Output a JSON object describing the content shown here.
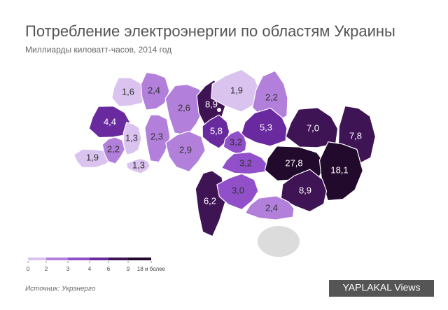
{
  "title": "Потребление электроэнергии по областям Украины",
  "subtitle": "Миллиарды киловатт-часов, 2014 год",
  "source": "Источник:  Укрэнерго",
  "watermark": "YAPLAKAL Views",
  "legend": {
    "ticks": [
      0,
      2,
      3,
      4,
      6,
      9,
      {
        "value": 18,
        "label": "18 и более"
      }
    ],
    "colors": [
      "#dac3ee",
      "#b27fdb",
      "#9150c9",
      "#6a2a9f",
      "#3f1455",
      "#220a2c"
    ]
  },
  "regions": [
    {
      "value": 1.6,
      "value_label": "1,6"
    },
    {
      "value": 2.4,
      "value_label": "2,4"
    },
    {
      "value": 2.6,
      "value_label": "2,6"
    },
    {
      "value": 8.9,
      "value_label": "8,9"
    },
    {
      "value": 1.9,
      "value_label": "1,9"
    },
    {
      "value": 2.2,
      "value_label": "2,2"
    },
    {
      "value": 4.4,
      "value_label": "4,4"
    },
    {
      "value": 1.3,
      "value_label": "1,3"
    },
    {
      "value": 2.3,
      "value_label": "2,3"
    },
    {
      "value": 2.9,
      "value_label": "2,9"
    },
    {
      "value": 5.8,
      "value_label": "5,8"
    },
    {
      "value": 5.3,
      "value_label": "5,3"
    },
    {
      "value": 7.0,
      "value_label": "7,0"
    },
    {
      "value": 7.8,
      "value_label": "7,8"
    },
    {
      "value": 1.9,
      "value_label": "1,9"
    },
    {
      "value": 2.2,
      "value_label": "2,2"
    },
    {
      "value": 1.3,
      "value_label": "1,3"
    },
    {
      "value": 3.2,
      "value_label": "3,2"
    },
    {
      "value": 3.2,
      "value_label": "3,2"
    },
    {
      "value": 27.8,
      "value_label": "27,8"
    },
    {
      "value": 18.1,
      "value_label": "18,1"
    },
    {
      "value": 6.2,
      "value_label": "6,2"
    },
    {
      "value": 3.0,
      "value_label": "3,0"
    },
    {
      "value": 8.9,
      "value_label": "8,9"
    },
    {
      "value": 2.4,
      "value_label": "2,4"
    }
  ]
}
